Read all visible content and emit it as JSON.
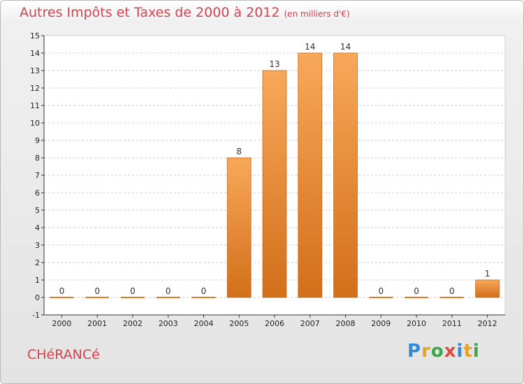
{
  "title": "Autres Impôts et Taxes de 2000 à 2012",
  "unit": "(en milliers d'€)",
  "commune": "CHéRANCé",
  "logo": {
    "letters": [
      {
        "ch": "P",
        "color": "#2e8bd6"
      },
      {
        "ch": "r",
        "color": "#e8a321"
      },
      {
        "ch": "o",
        "color": "#3aa84a"
      },
      {
        "ch": "x",
        "color": "#e24b3b"
      },
      {
        "ch": "i",
        "color": "#2e8bd6"
      },
      {
        "ch": "t",
        "color": "#e8a321"
      },
      {
        "ch": "i",
        "color": "#3aa84a"
      }
    ]
  },
  "colors": {
    "bar_light": "#f8a85a",
    "bar_dark": "#d26f1a",
    "grid": "#cccccc",
    "title": "#d0434f"
  },
  "chart_data": {
    "type": "bar",
    "categories": [
      "2000",
      "2001",
      "2002",
      "2003",
      "2004",
      "2005",
      "2006",
      "2007",
      "2008",
      "2009",
      "2010",
      "2011",
      "2012"
    ],
    "values": [
      0,
      0,
      0,
      0,
      0,
      8,
      13,
      14,
      14,
      0,
      0,
      0,
      1
    ],
    "ylim": [
      -1,
      15
    ],
    "yticks": [
      -1,
      0,
      1,
      2,
      3,
      4,
      5,
      6,
      7,
      8,
      9,
      10,
      11,
      12,
      13,
      14,
      15
    ],
    "grid": true,
    "xlabel": "",
    "ylabel": ""
  }
}
